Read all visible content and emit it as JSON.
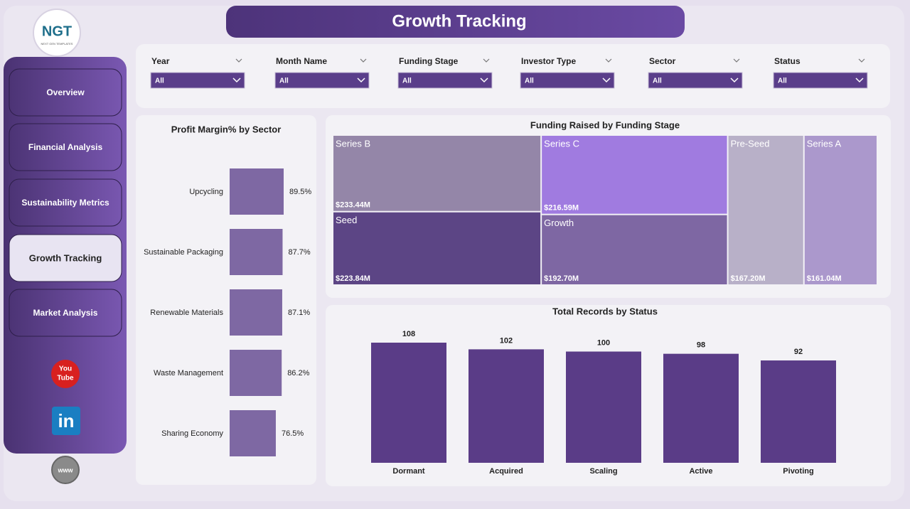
{
  "header": {
    "title": "Growth Tracking"
  },
  "logo": {
    "text": "NGT",
    "subtext": "NEXT GEN TEMPLATES"
  },
  "nav": [
    {
      "label": "Overview",
      "active": false
    },
    {
      "label": "Financial Analysis",
      "active": false
    },
    {
      "label": "Sustainability Metrics",
      "active": false
    },
    {
      "label": "Growth Tracking",
      "active": true
    },
    {
      "label": "Market Analysis",
      "active": false
    }
  ],
  "icons": {
    "youtube": [
      "You",
      "Tube"
    ],
    "linkedin": "in",
    "web": "www"
  },
  "filters": [
    {
      "label": "Year",
      "value": "All"
    },
    {
      "label": "Month Name",
      "value": "All"
    },
    {
      "label": "Funding Stage",
      "value": "All"
    },
    {
      "label": "Investor Type",
      "value": "All"
    },
    {
      "label": "Sector",
      "value": "All"
    },
    {
      "label": "Status",
      "value": "All"
    }
  ],
  "chart_data": [
    {
      "type": "bar",
      "horizontal": true,
      "title": "Profit Margin% by Sector",
      "categories": [
        "Upcycling",
        "Sustainable Packaging",
        "Renewable Materials",
        "Waste Management",
        "Sharing Economy"
      ],
      "values": [
        89.5,
        87.7,
        87.1,
        86.2,
        76.5
      ],
      "value_labels": [
        "89.5%",
        "87.7%",
        "87.1%",
        "86.2%",
        "76.5%"
      ],
      "color": "#7e68a3"
    },
    {
      "type": "treemap",
      "title": "Funding Raised by Funding Stage",
      "categories": [
        "Series B",
        "Seed",
        "Series C",
        "Growth",
        "Pre-Seed",
        "Series A"
      ],
      "values": [
        233.44,
        223.84,
        216.59,
        192.7,
        167.2,
        161.04
      ],
      "value_labels": [
        "$233.44M",
        "$223.84M",
        "$216.59M",
        "$192.70M",
        "$167.20M",
        "$161.04M"
      ],
      "colors": [
        "#9486a8",
        "#5c4585",
        "#a07be0",
        "#7e67a3",
        "#b8b0c8",
        "#ab98cc"
      ]
    },
    {
      "type": "bar",
      "title": "Total Records by Status",
      "categories": [
        "Dormant",
        "Acquired",
        "Scaling",
        "Active",
        "Pivoting"
      ],
      "values": [
        108,
        102,
        100,
        98,
        92
      ],
      "color": "#5a3c87"
    }
  ]
}
